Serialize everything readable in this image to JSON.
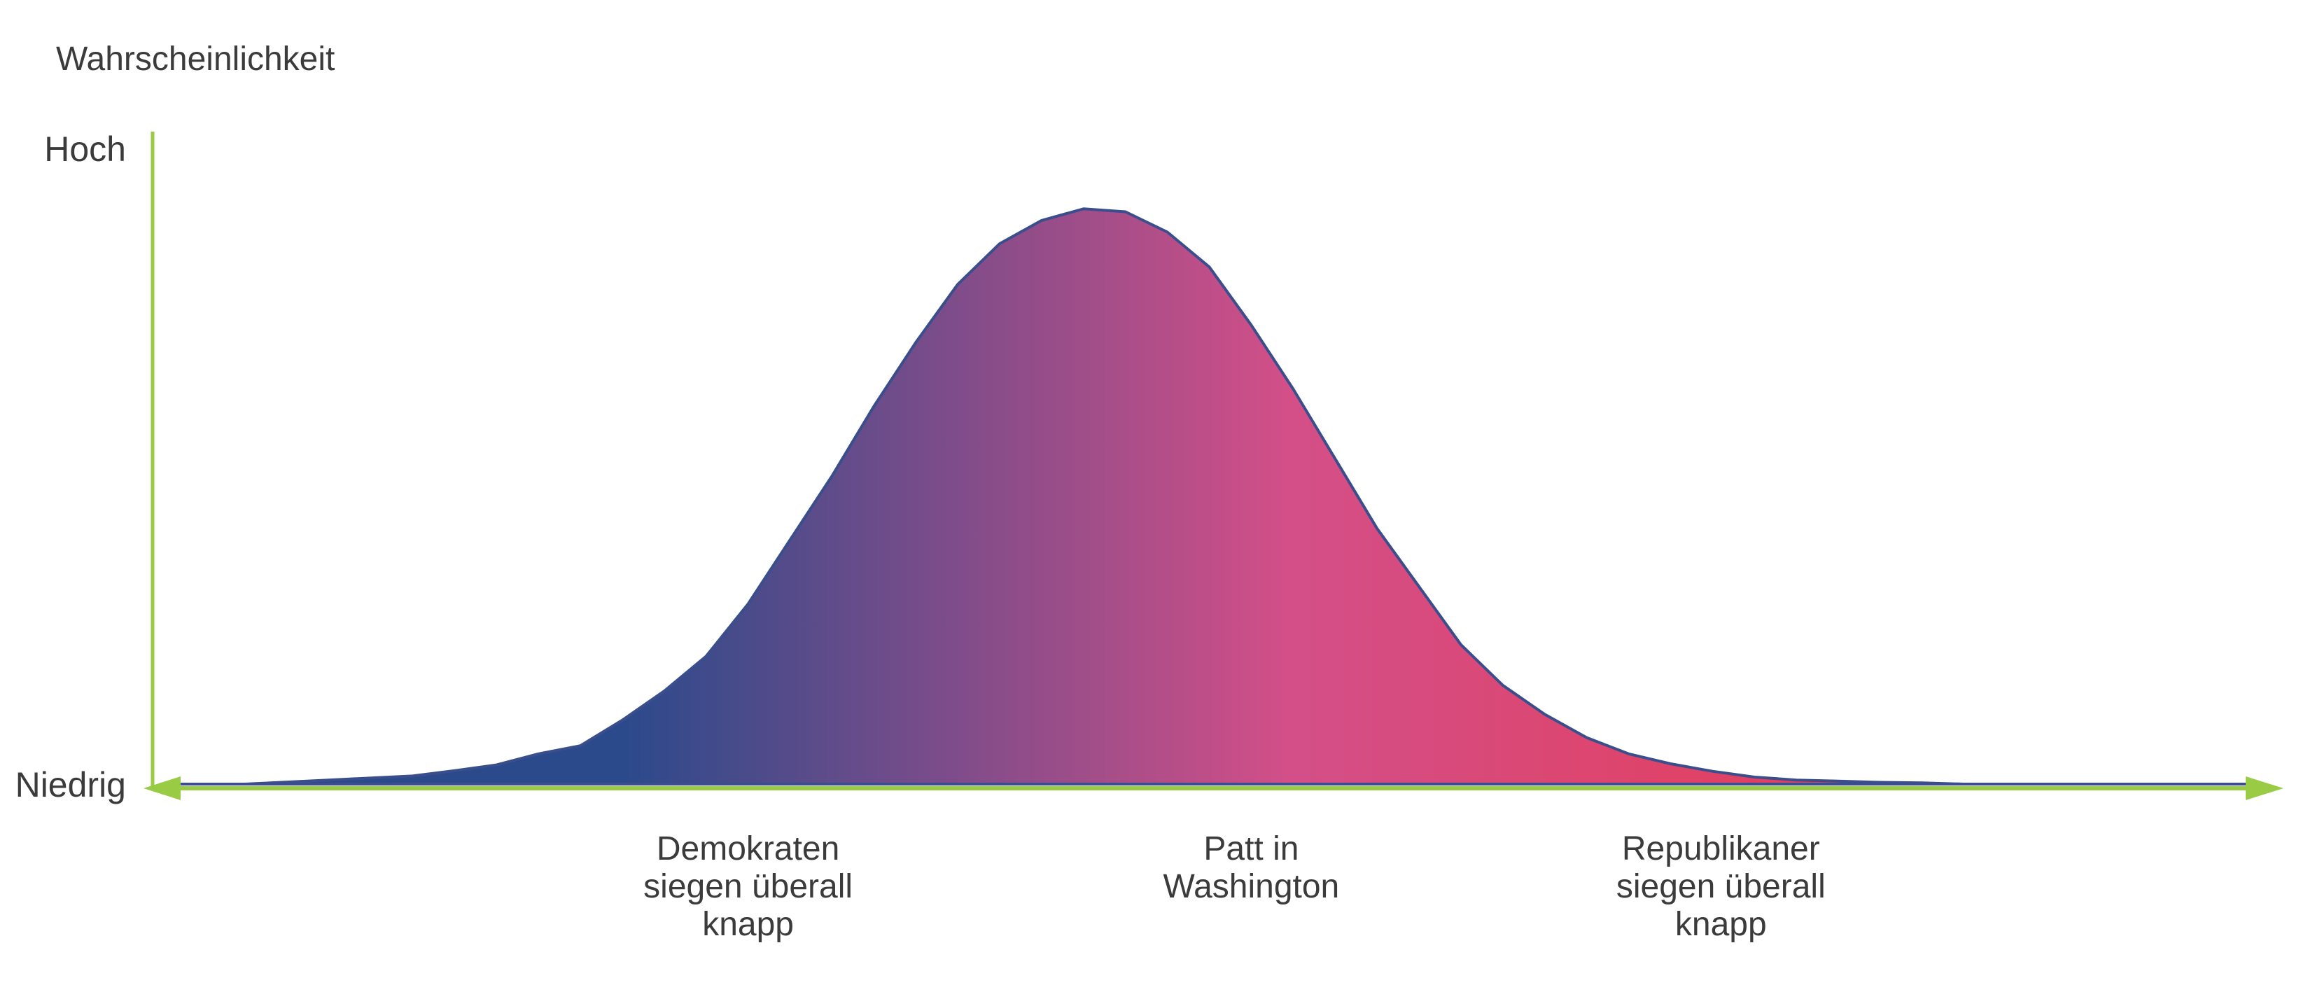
{
  "chart_data": {
    "type": "area",
    "title": "",
    "ylabel": "Wahrscheinlichkeit",
    "xlabel": "",
    "y_tick_labels": {
      "high": "Hoch",
      "low": "Niedrig"
    },
    "xlim": [
      -12.5,
      12.5
    ],
    "ylim": [
      0,
      100
    ],
    "grid": false,
    "legend": "none",
    "x_categories": [
      {
        "lines": [
          "Demokraten",
          "siegen überall",
          "knapp"
        ],
        "x": -5.5
      },
      {
        "lines": [
          "Patt in",
          "Washington"
        ],
        "x": 0.5
      },
      {
        "lines": [
          "Republikaner",
          "siegen überall",
          "knapp"
        ],
        "x": 6.1
      }
    ],
    "x": [
      -12.5,
      -11.5,
      -10.5,
      -9.5,
      -9.0,
      -8.5,
      -8.0,
      -7.5,
      -7.0,
      -6.5,
      -6.0,
      -5.5,
      -5.0,
      -4.5,
      -4.0,
      -3.5,
      -3.0,
      -2.5,
      -2.0,
      -1.5,
      -1.0,
      -0.5,
      0.0,
      0.5,
      1.0,
      1.5,
      2.0,
      2.5,
      3.0,
      3.5,
      4.0,
      4.5,
      5.0,
      5.5,
      6.0,
      6.5,
      7.0,
      7.5,
      8.0,
      8.5,
      9.0,
      9.5,
      10.5,
      11.5,
      12.5
    ],
    "y": [
      0,
      0,
      0.7,
      1.4,
      2.3,
      3.3,
      5.2,
      6.6,
      11.0,
      16.0,
      22.0,
      31.0,
      42.0,
      53.0,
      65.0,
      76.0,
      86.0,
      93.0,
      97.0,
      99.0,
      98.5,
      95.0,
      89.0,
      79.0,
      68.0,
      56.0,
      44.0,
      34.0,
      24.0,
      17.0,
      12.0,
      8.0,
      5.2,
      3.5,
      2.2,
      1.2,
      0.7,
      0.5,
      0.3,
      0.2,
      0,
      0,
      0,
      0,
      0
    ],
    "colors": {
      "axis": "#99cc44",
      "outline": "#3a4e8c",
      "gradient_left": "#2b4a8b",
      "gradient_mid": "#d44f88",
      "gradient_right": "#e8384b"
    }
  }
}
